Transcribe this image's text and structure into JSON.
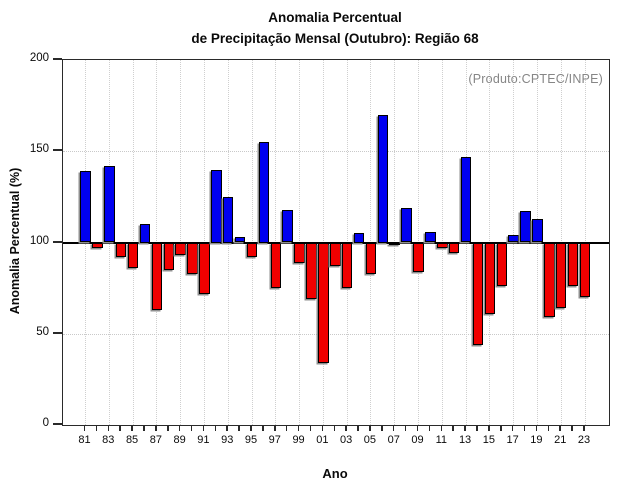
{
  "title": {
    "line1": "Anomalia Percentual",
    "line2": "de Precipitação Mensal (Outubro): Região 68"
  },
  "annotation": "(Produto:CPTEC/INPE)",
  "axes": {
    "y_label": "Anomalia Percentual (%)",
    "x_label": "Ano",
    "y_ticks": [
      0,
      50,
      100,
      150,
      200
    ],
    "labeled_years": [
      "81",
      "83",
      "85",
      "87",
      "89",
      "91",
      "93",
      "95",
      "97",
      "99",
      "01",
      "03",
      "05",
      "07",
      "09",
      "11",
      "13",
      "15",
      "17",
      "19",
      "21",
      "23"
    ]
  },
  "colors": {
    "above_baseline": "#0000f0",
    "below_baseline": "#f00000",
    "baseline_line": "#000000",
    "grid": "#c9c9c9",
    "annotation_text": "#868686"
  },
  "chart_data": {
    "type": "bar",
    "title": "Anomalia Percentual de Precipitação Mensal (Outubro): Região 68",
    "xlabel": "Ano",
    "ylabel": "Anomalia Percentual (%)",
    "ylim": [
      0,
      200
    ],
    "baseline": 100,
    "grid": "dotted horizontal at 50 and 150, dotted vertical at odd years",
    "legend": null,
    "categories": [
      "81",
      "82",
      "83",
      "84",
      "85",
      "86",
      "87",
      "88",
      "89",
      "90",
      "91",
      "92",
      "93",
      "94",
      "95",
      "96",
      "97",
      "98",
      "99",
      "00",
      "01",
      "02",
      "03",
      "04",
      "05",
      "06",
      "07",
      "08",
      "09",
      "10",
      "11",
      "12",
      "13",
      "14",
      "15",
      "16",
      "17",
      "18",
      "19",
      "20",
      "21",
      "22",
      "23"
    ],
    "values": [
      139,
      97,
      142,
      92,
      86,
      110,
      63,
      85,
      93,
      83,
      72,
      140,
      125,
      103,
      92,
      155,
      75,
      118,
      89,
      69,
      34,
      87,
      75,
      105,
      83,
      170,
      100,
      119,
      84,
      106,
      97,
      94,
      147,
      44,
      61,
      76,
      104,
      117,
      113,
      59,
      64,
      76,
      70
    ],
    "color_rule": "value > 100 blue, value < 100 red"
  }
}
